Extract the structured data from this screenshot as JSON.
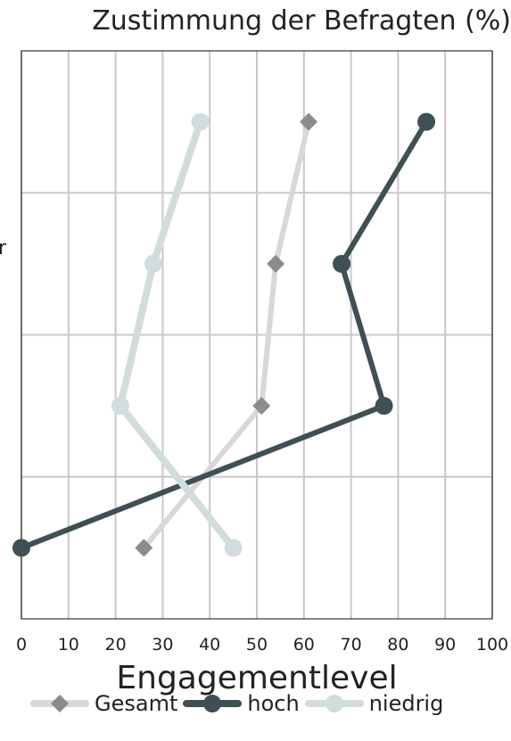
{
  "chart_data": {
    "type": "line",
    "title": "Zustimmung der Befragten (%)",
    "xlabel": "Engagementlevel",
    "ylabel_fragment": "r",
    "xlim": [
      0,
      100
    ],
    "x_ticks": [
      0,
      10,
      20,
      30,
      40,
      50,
      60,
      70,
      80,
      90,
      100
    ],
    "grid": true,
    "legend_placement": "bottom",
    "series": [
      {
        "name": "Gesamt",
        "color": "#8c8c8c",
        "line_color": "#d8d8d8",
        "marker": "diamond",
        "values": [
          61,
          54,
          51,
          26
        ]
      },
      {
        "name": "hoch",
        "color": "#3e5053",
        "line_color": "#3e5053",
        "marker": "circle",
        "values": [
          86,
          68,
          77,
          0
        ]
      },
      {
        "name": "niedrig",
        "color": "#d3dcdc",
        "line_color": "#d3dcdc",
        "marker": "circle",
        "values": [
          38,
          28,
          21,
          45
        ]
      }
    ]
  }
}
